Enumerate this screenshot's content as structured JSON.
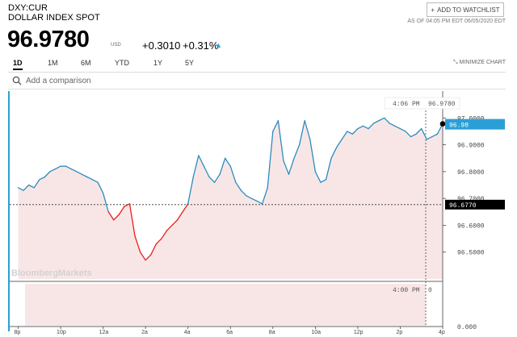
{
  "header": {
    "ticker": "DXY:CUR",
    "name": "DOLLAR INDEX SPOT",
    "watchlist_label": "ADD TO WATCHLIST",
    "as_of": "AS OF 04:05 PM EDT 06/05/2020 EDT",
    "price": "96.9780",
    "unit": "USD",
    "change": "+0.3010",
    "change_pct": "+0.31%",
    "accent": "#2a9fd6"
  },
  "tabs": [
    {
      "label": "1D",
      "active": true
    },
    {
      "label": "1M"
    },
    {
      "label": "6M"
    },
    {
      "label": "YTD"
    },
    {
      "label": "1Y"
    },
    {
      "label": "5Y"
    }
  ],
  "minimize_label": "MINIMIZE CHART",
  "compare_placeholder": "Add a comparison",
  "watermark": "BloombergMarkets",
  "chart_data": {
    "type": "line",
    "x_tick_labels": [
      "8p",
      "10p",
      "12a",
      "2a",
      "4a",
      "6a",
      "8a",
      "10a",
      "12p",
      "2p",
      "4p"
    ],
    "x_range_hours": [
      19.6,
      40.0
    ],
    "y_ticks": [
      "96.5000",
      "96.6000",
      "96.7000",
      "96.8000",
      "96.9000",
      "97.0000"
    ],
    "ylim": [
      96.4,
      97.1
    ],
    "previous_close": 96.677,
    "previous_close_label": "96.6770",
    "last_value_label": "96.98",
    "hover_time": "4:06 PM",
    "hover_value": "96.9780",
    "volume_time": "4:00 PM",
    "volume_value": "0",
    "volume_axis_label": "0.000",
    "series": [
      {
        "color_up": "#2b8cbe",
        "color_down": "#e8201d",
        "x": [
          20.0,
          20.25,
          20.5,
          20.75,
          21.0,
          21.25,
          21.5,
          21.75,
          22.0,
          22.25,
          22.5,
          22.75,
          23.0,
          23.25,
          23.5,
          23.75,
          24.0,
          24.25,
          24.5,
          24.75,
          25.0,
          25.25,
          25.5,
          25.75,
          26.0,
          26.25,
          26.5,
          26.75,
          27.0,
          27.25,
          27.5,
          27.75,
          28.0,
          28.25,
          28.5,
          28.75,
          29.0,
          29.25,
          29.5,
          29.75,
          30.0,
          30.25,
          30.5,
          30.75,
          31.0,
          31.25,
          31.5,
          31.75,
          32.0,
          32.25,
          32.5,
          32.75,
          33.0,
          33.25,
          33.5,
          33.75,
          34.0,
          34.25,
          34.5,
          34.75,
          35.0,
          35.25,
          35.5,
          35.75,
          36.0,
          36.25,
          36.5,
          36.75,
          37.0,
          37.25,
          37.5,
          37.75,
          38.0,
          38.25,
          38.5,
          38.75,
          39.0,
          39.25,
          39.5,
          39.75,
          40.0
        ],
        "y": [
          96.74,
          96.73,
          96.75,
          96.74,
          96.77,
          96.78,
          96.8,
          96.81,
          96.82,
          96.82,
          96.81,
          96.8,
          96.79,
          96.78,
          96.77,
          96.76,
          96.72,
          96.65,
          96.62,
          96.64,
          96.67,
          96.68,
          96.56,
          96.5,
          96.47,
          96.49,
          96.53,
          96.55,
          96.58,
          96.6,
          96.62,
          96.65,
          96.68,
          96.78,
          96.86,
          96.82,
          96.78,
          96.76,
          96.79,
          96.85,
          96.82,
          96.76,
          96.73,
          96.71,
          96.7,
          96.69,
          96.68,
          96.74,
          96.95,
          96.99,
          96.84,
          96.79,
          96.85,
          96.9,
          96.99,
          96.92,
          96.8,
          96.76,
          96.77,
          96.85,
          96.89,
          96.92,
          96.95,
          96.94,
          96.96,
          96.97,
          96.96,
          96.98,
          96.99,
          97.0,
          96.98,
          96.97,
          96.96,
          96.95,
          96.93,
          96.94,
          96.96,
          96.92,
          96.93,
          96.94,
          96.978
        ]
      }
    ]
  }
}
